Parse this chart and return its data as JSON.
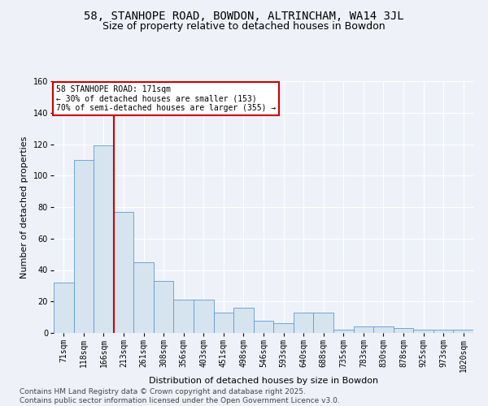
{
  "title": "58, STANHOPE ROAD, BOWDON, ALTRINCHAM, WA14 3JL",
  "subtitle": "Size of property relative to detached houses in Bowdon",
  "xlabel": "Distribution of detached houses by size in Bowdon",
  "ylabel": "Number of detached properties",
  "footer": "Contains HM Land Registry data © Crown copyright and database right 2025.\nContains public sector information licensed under the Open Government Licence v3.0.",
  "categories": [
    "71sqm",
    "118sqm",
    "166sqm",
    "213sqm",
    "261sqm",
    "308sqm",
    "356sqm",
    "403sqm",
    "451sqm",
    "498sqm",
    "546sqm",
    "593sqm",
    "640sqm",
    "688sqm",
    "735sqm",
    "783sqm",
    "830sqm",
    "878sqm",
    "925sqm",
    "973sqm",
    "1020sqm"
  ],
  "bar_values": [
    32,
    110,
    119,
    77,
    45,
    33,
    21,
    21,
    13,
    16,
    8,
    6,
    13,
    13,
    2,
    4,
    4,
    3,
    2,
    2,
    2
  ],
  "bar_color": "#d6e4f0",
  "bar_edge_color": "#5b9bd5",
  "vline_color": "#cc0000",
  "vline_position": 2.5,
  "annotation_text": "58 STANHOPE ROAD: 171sqm\n← 30% of detached houses are smaller (153)\n70% of semi-detached houses are larger (355) →",
  "ylim": [
    0,
    160
  ],
  "background_color": "#eef2f8",
  "grid_color": "#ffffff",
  "title_fontsize": 10,
  "subtitle_fontsize": 9,
  "axis_label_fontsize": 8,
  "tick_fontsize": 7,
  "footer_fontsize": 6.5
}
